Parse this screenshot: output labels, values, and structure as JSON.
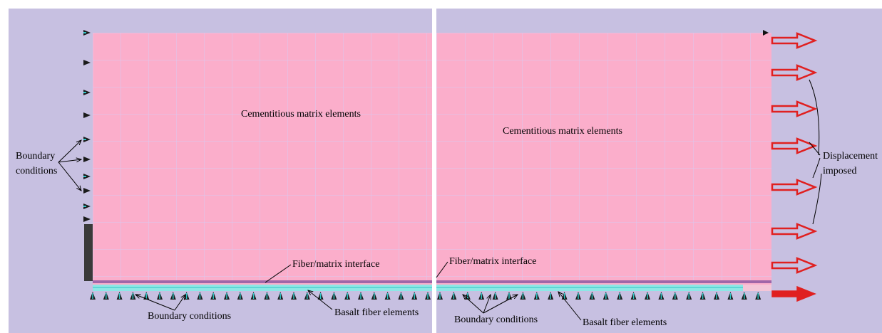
{
  "panels": [
    {
      "id": "left",
      "labels": {
        "matrix": "Cementitious matrix elements",
        "interface": "Fiber/matrix interface",
        "boundary_left_line1": "Boundary",
        "boundary_left_line2": "conditions",
        "boundary_bottom": "Boundary conditions",
        "fiber": "Basalt fiber elements"
      }
    },
    {
      "id": "right",
      "labels": {
        "matrix": "Cementitious matrix elements",
        "interface": "Fiber/matrix interface",
        "boundary_bottom": "Boundary conditions",
        "fiber": "Basalt fiber elements",
        "displacement_line1": "Displacement",
        "displacement_line2": "imposed"
      }
    }
  ],
  "colors": {
    "background": "#c7c0e1",
    "matrix": "#fbaecb",
    "grid": "#d8c9f2",
    "fiber": "#8ee7e6",
    "interface": "#a066a8",
    "support": "#1b1b1b",
    "support_accent": "#2ec4c4",
    "arrow": "#e02020"
  },
  "icons": {
    "support": "roller-support-icon",
    "displacement": "outlined-arrow-right-icon"
  }
}
